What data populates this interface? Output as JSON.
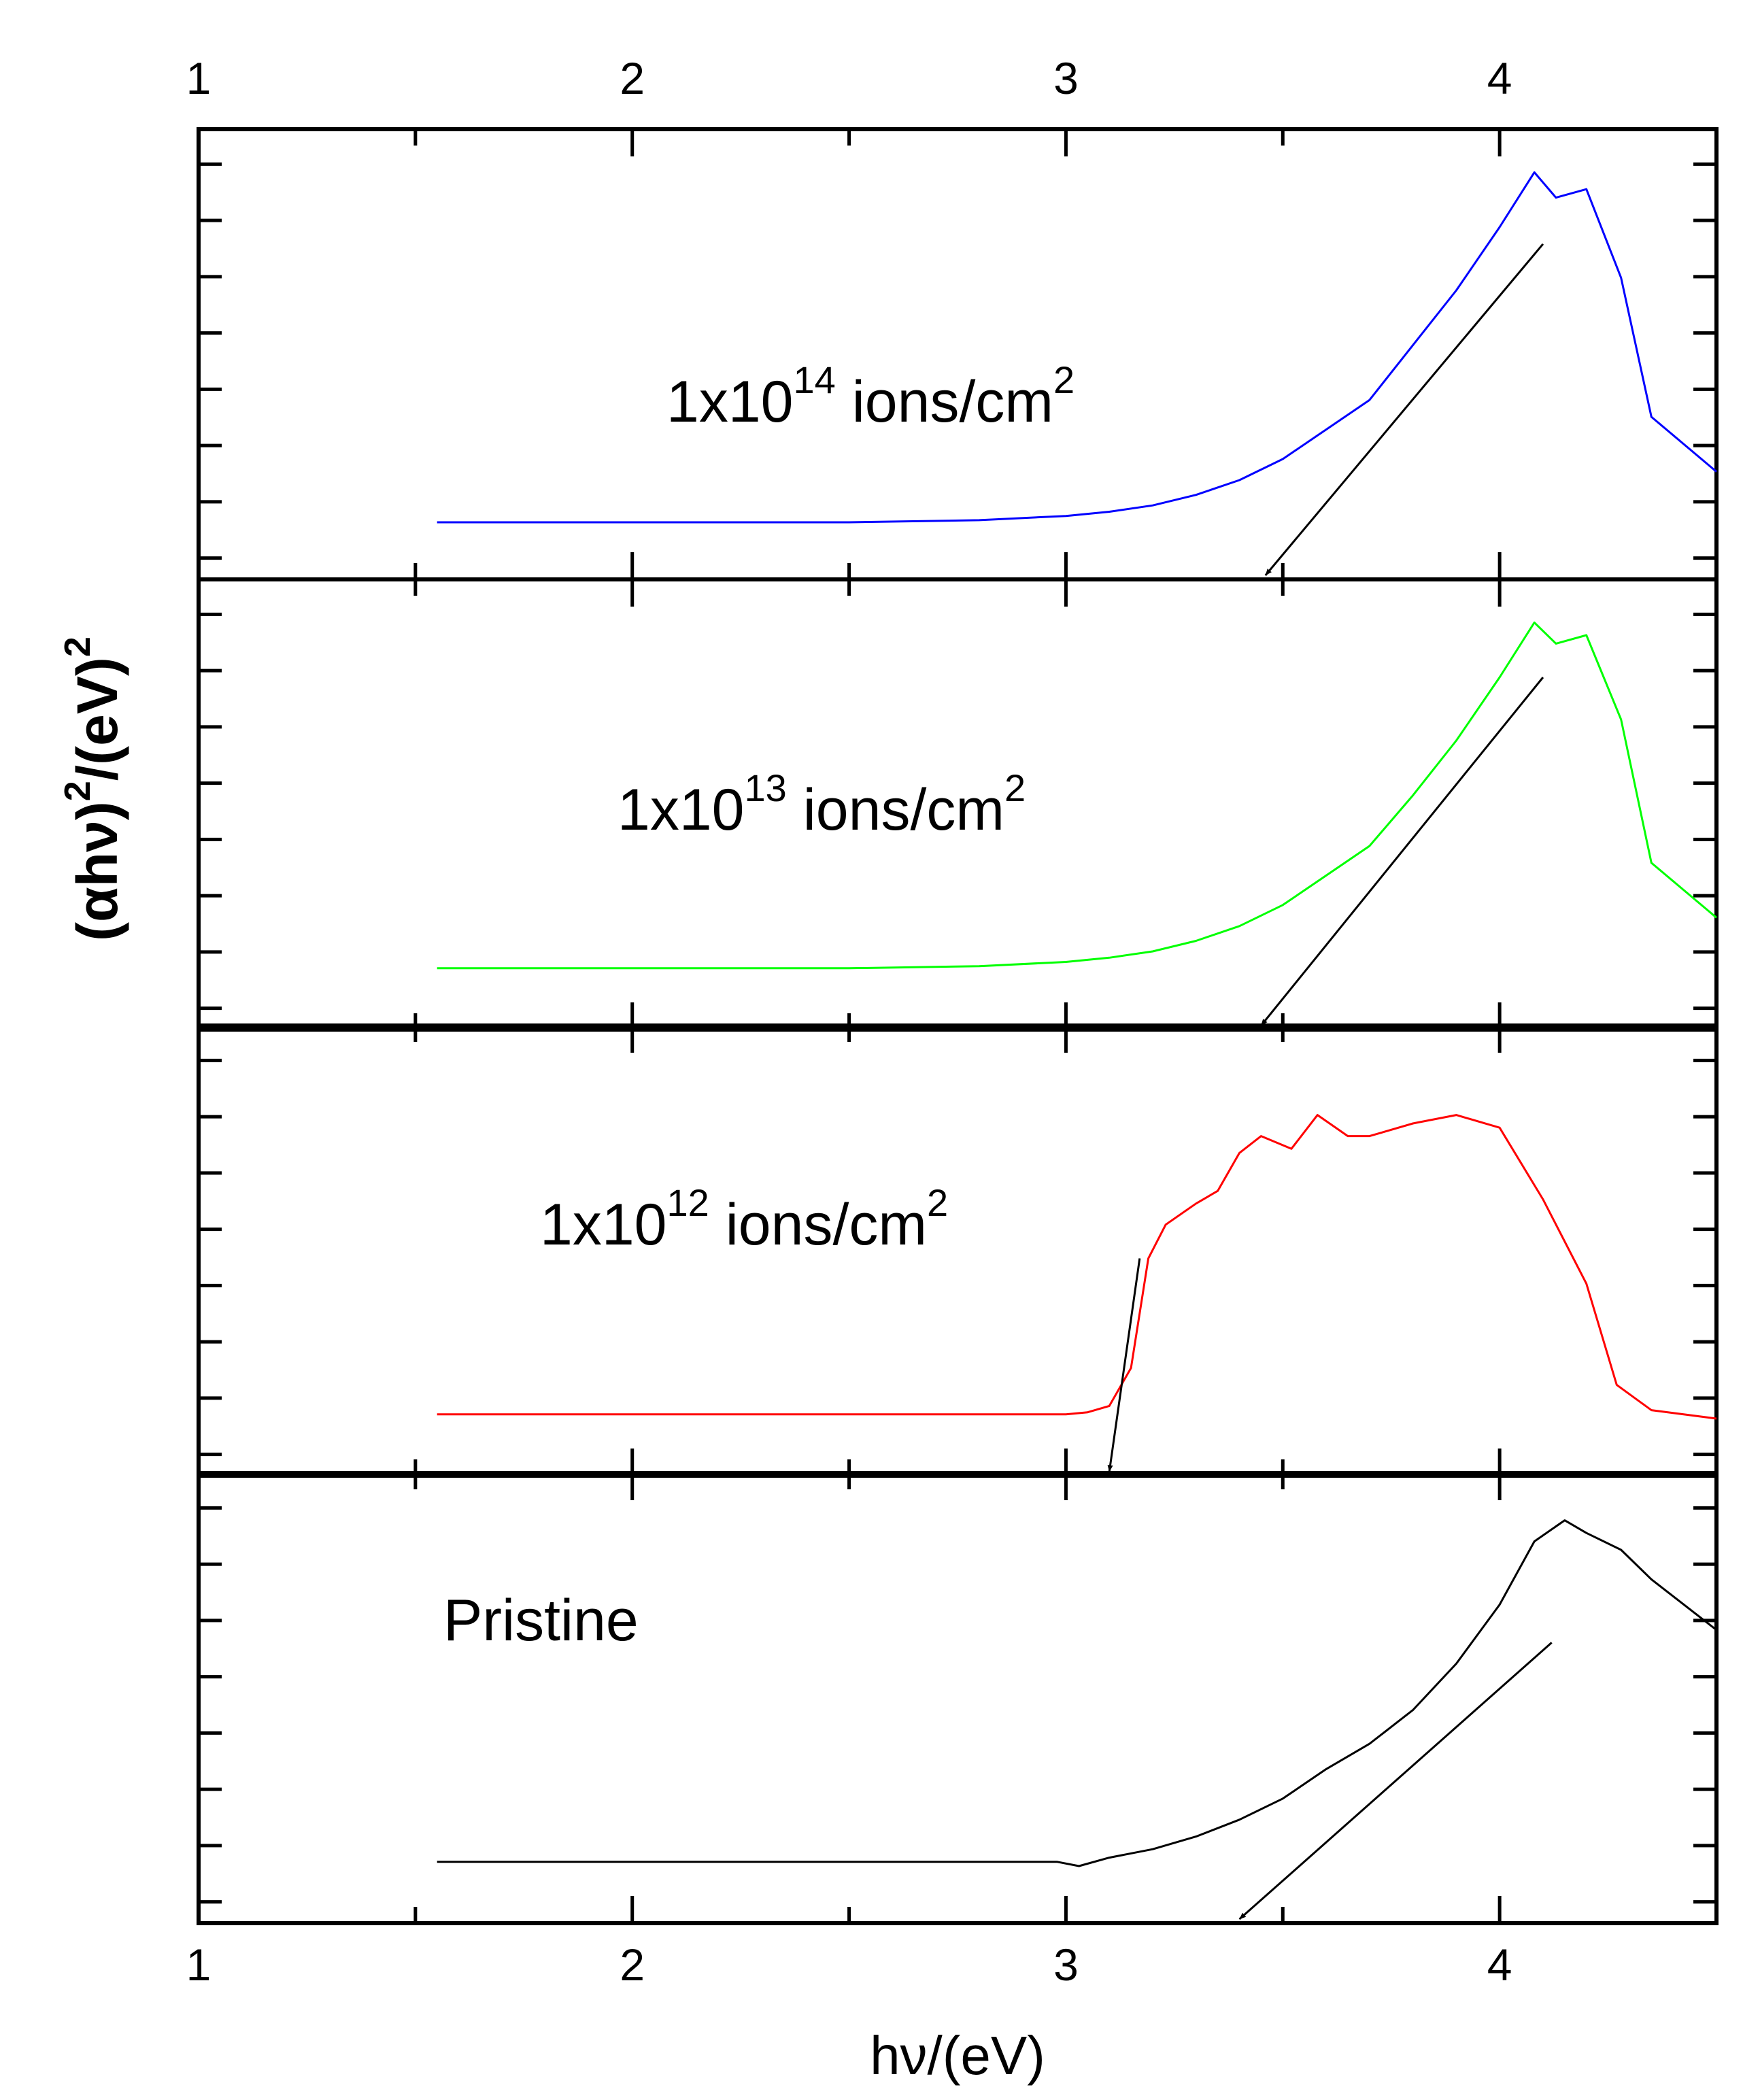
{
  "chart_data": {
    "type": "line",
    "layout": "stacked-panels",
    "xlabel": "hν/(eV)",
    "ylabel": {
      "base": "(αhν)",
      "sup1": "2",
      "mid": "/(eV)",
      "sup2": "2"
    },
    "xlim": [
      1,
      4.5
    ],
    "x_major_ticks": [
      1,
      2,
      3,
      4
    ],
    "x_minor_ticks": [
      1.5,
      2.5,
      3.5
    ],
    "y_tick_count_per_panel": 8,
    "arrow_color": "#000000",
    "panels": [
      {
        "label": {
          "pre": "1x10",
          "sup": "14",
          "post": " ions/cm",
          "sup2": "2"
        },
        "color": "#0000ff",
        "ylim": [
          0,
          1
        ],
        "x": [
          1.55,
          2.0,
          2.5,
          2.8,
          3.0,
          3.1,
          3.2,
          3.3,
          3.4,
          3.5,
          3.6,
          3.7,
          3.8,
          3.9,
          4.0,
          4.08,
          4.13,
          4.2,
          4.28,
          4.35,
          4.5
        ],
        "y": [
          0.1,
          0.1,
          0.1,
          0.105,
          0.115,
          0.125,
          0.14,
          0.165,
          0.2,
          0.25,
          0.32,
          0.39,
          0.52,
          0.65,
          0.8,
          0.93,
          0.87,
          0.89,
          0.68,
          0.35,
          0.22
        ],
        "tangent": {
          "from": [
            4.1,
            0.76
          ],
          "to": [
            3.46,
            0.02
          ]
        }
      },
      {
        "label": {
          "pre": "1x10",
          "sup": "13",
          "post": " ions/cm",
          "sup2": "2"
        },
        "color": "#00ff00",
        "ylim": [
          0,
          1
        ],
        "x": [
          1.55,
          2.0,
          2.5,
          2.8,
          3.0,
          3.1,
          3.2,
          3.3,
          3.4,
          3.5,
          3.6,
          3.7,
          3.8,
          3.9,
          4.0,
          4.08,
          4.13,
          4.2,
          4.28,
          4.35,
          4.5
        ],
        "y": [
          0.11,
          0.11,
          0.11,
          0.115,
          0.125,
          0.135,
          0.15,
          0.175,
          0.21,
          0.26,
          0.33,
          0.4,
          0.52,
          0.65,
          0.8,
          0.93,
          0.88,
          0.9,
          0.7,
          0.36,
          0.23
        ],
        "tangent": {
          "from": [
            4.1,
            0.8
          ],
          "to": [
            3.45,
            0.02
          ]
        }
      },
      {
        "label": {
          "pre": "1x10",
          "sup": "12",
          "post": " ions/cm",
          "sup2": "2"
        },
        "color": "#ff0000",
        "ylim": [
          0,
          1
        ],
        "x": [
          1.55,
          2.0,
          2.5,
          2.8,
          3.0,
          3.05,
          3.1,
          3.15,
          3.19,
          3.23,
          3.3,
          3.35,
          3.4,
          3.45,
          3.52,
          3.58,
          3.65,
          3.7,
          3.8,
          3.9,
          4.0,
          4.1,
          4.2,
          4.27,
          4.35,
          4.5
        ],
        "y": [
          0.11,
          0.11,
          0.11,
          0.11,
          0.11,
          0.115,
          0.13,
          0.22,
          0.48,
          0.56,
          0.61,
          0.64,
          0.73,
          0.77,
          0.74,
          0.82,
          0.77,
          0.77,
          0.8,
          0.82,
          0.79,
          0.62,
          0.42,
          0.18,
          0.12,
          0.1
        ],
        "tangent": {
          "from": [
            3.17,
            0.48
          ],
          "to": [
            3.1,
            0.01
          ]
        }
      },
      {
        "label": {
          "pre": "Pristine",
          "sup": "",
          "post": "",
          "sup2": ""
        },
        "color": "#000000",
        "ylim": [
          0,
          1
        ],
        "x": [
          1.55,
          2.0,
          2.5,
          2.8,
          2.98,
          3.03,
          3.1,
          3.2,
          3.3,
          3.4,
          3.5,
          3.6,
          3.7,
          3.8,
          3.9,
          4.0,
          4.08,
          4.15,
          4.2,
          4.28,
          4.35,
          4.5
        ],
        "y": [
          0.11,
          0.11,
          0.11,
          0.11,
          0.11,
          0.1,
          0.12,
          0.14,
          0.17,
          0.21,
          0.26,
          0.33,
          0.39,
          0.47,
          0.58,
          0.72,
          0.87,
          0.92,
          0.89,
          0.85,
          0.78,
          0.66
        ],
        "tangent": {
          "from": [
            4.12,
            0.63
          ],
          "to": [
            3.4,
            0.01
          ]
        }
      }
    ]
  }
}
